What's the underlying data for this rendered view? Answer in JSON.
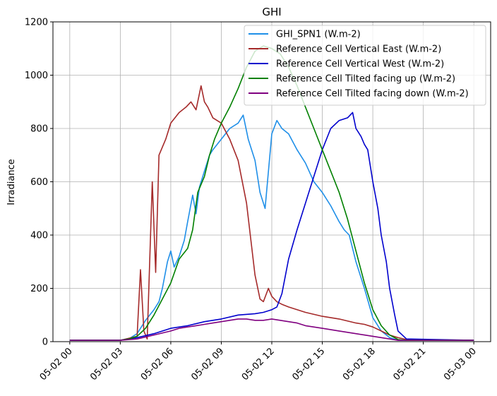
{
  "chart_data": {
    "type": "line",
    "title": "GHI",
    "xlabel": "",
    "ylabel": "Irradiance",
    "xlim": [
      -1.0,
      25.0
    ],
    "ylim": [
      0,
      1200
    ],
    "x_unit": "hours after 05-02 00:00",
    "xticks": [
      {
        "v": 0,
        "label": "05-02 00"
      },
      {
        "v": 3,
        "label": "05-02 03"
      },
      {
        "v": 6,
        "label": "05-02 06"
      },
      {
        "v": 9,
        "label": "05-02 09"
      },
      {
        "v": 12,
        "label": "05-02 12"
      },
      {
        "v": 15,
        "label": "05-02 15"
      },
      {
        "v": 18,
        "label": "05-02 18"
      },
      {
        "v": 21,
        "label": "05-02 21"
      },
      {
        "v": 24,
        "label": "05-03 00"
      }
    ],
    "yticks": [
      0,
      200,
      400,
      600,
      800,
      1000,
      1200
    ],
    "grid": true,
    "legend_position": "top-right",
    "series": [
      {
        "name": "GHI_SPN1 (W.m-2)",
        "color": "#1f8fe8",
        "x": [
          0,
          3.0,
          3.5,
          4.0,
          4.5,
          5.0,
          5.3,
          5.5,
          5.8,
          6.0,
          6.2,
          6.5,
          6.8,
          7.0,
          7.3,
          7.5,
          7.7,
          8.0,
          8.3,
          8.5,
          9.0,
          9.5,
          10.0,
          10.3,
          10.6,
          11.0,
          11.3,
          11.6,
          12.0,
          12.3,
          12.6,
          13.0,
          13.5,
          14.0,
          14.5,
          15.0,
          15.5,
          16.0,
          16.3,
          16.6,
          17.0,
          17.5,
          18.0,
          18.5,
          19.0,
          19.5,
          20.0,
          24.0
        ],
        "y": [
          5,
          5,
          10,
          30,
          80,
          120,
          150,
          200,
          300,
          340,
          280,
          320,
          380,
          450,
          550,
          480,
          580,
          640,
          700,
          720,
          760,
          800,
          820,
          850,
          760,
          680,
          560,
          500,
          780,
          830,
          800,
          780,
          720,
          670,
          600,
          560,
          510,
          450,
          420,
          400,
          300,
          200,
          90,
          40,
          15,
          5,
          5,
          5
        ]
      },
      {
        "name": "Reference Cell Vertical East (W.m-2)",
        "color": "#a52a2a",
        "x": [
          0,
          3.0,
          4.0,
          4.2,
          4.4,
          4.6,
          4.9,
          5.1,
          5.3,
          5.5,
          5.7,
          6.0,
          6.5,
          6.9,
          7.2,
          7.5,
          7.8,
          8.0,
          8.2,
          8.5,
          9.0,
          9.5,
          10.0,
          10.5,
          11.0,
          11.3,
          11.5,
          11.8,
          12.0,
          12.3,
          12.6,
          13.0,
          14.0,
          15.0,
          16.0,
          17.0,
          17.5,
          18.0,
          18.5,
          19.0,
          19.5,
          20.0,
          24.0
        ],
        "y": [
          5,
          5,
          20,
          270,
          40,
          10,
          600,
          260,
          700,
          730,
          760,
          820,
          860,
          880,
          900,
          870,
          960,
          900,
          880,
          840,
          820,
          760,
          680,
          520,
          250,
          160,
          150,
          200,
          170,
          150,
          140,
          130,
          110,
          95,
          85,
          70,
          65,
          55,
          40,
          25,
          15,
          8,
          5
        ]
      },
      {
        "name": "Reference Cell Vertical West (W.m-2)",
        "color": "#0000cd",
        "x": [
          0,
          3.0,
          4.0,
          5.0,
          6.0,
          7.0,
          8.0,
          9.0,
          10.0,
          11.0,
          11.5,
          12.0,
          12.3,
          12.6,
          13.0,
          13.5,
          14.0,
          14.5,
          15.0,
          15.5,
          16.0,
          16.5,
          16.8,
          17.0,
          17.3,
          17.5,
          17.7,
          18.0,
          18.3,
          18.5,
          18.8,
          19.0,
          19.3,
          19.5,
          20.0,
          24.0
        ],
        "y": [
          5,
          5,
          15,
          30,
          50,
          60,
          75,
          85,
          100,
          105,
          110,
          120,
          130,
          180,
          310,
          420,
          520,
          620,
          720,
          800,
          830,
          840,
          860,
          800,
          770,
          740,
          720,
          600,
          500,
          400,
          300,
          200,
          100,
          40,
          10,
          5
        ]
      },
      {
        "name": "Reference Cell Tilted facing up (W.m-2)",
        "color": "#008000",
        "x": [
          0,
          3.0,
          3.5,
          4.0,
          4.5,
          5.0,
          5.5,
          6.0,
          6.5,
          7.0,
          7.3,
          7.6,
          8.0,
          8.3,
          8.6,
          9.0,
          9.5,
          10.0,
          10.5,
          11.0,
          11.5,
          12.0,
          12.5,
          13.0,
          13.5,
          14.0,
          14.5,
          15.0,
          15.5,
          16.0,
          16.5,
          17.0,
          17.5,
          18.0,
          18.5,
          19.0,
          19.5,
          20.0,
          24.0
        ],
        "y": [
          5,
          5,
          10,
          20,
          50,
          100,
          160,
          220,
          310,
          350,
          420,
          560,
          620,
          700,
          760,
          820,
          880,
          950,
          1030,
          1090,
          1110,
          1100,
          1080,
          1030,
          960,
          880,
          800,
          720,
          640,
          560,
          460,
          340,
          220,
          120,
          60,
          25,
          8,
          5,
          5
        ]
      },
      {
        "name": "Reference Cell Tilted facing down (W.m-2)",
        "color": "#800080",
        "x": [
          0,
          3.0,
          4.0,
          5.0,
          6.0,
          6.5,
          7.0,
          7.5,
          8.0,
          8.5,
          9.0,
          9.5,
          10.0,
          10.5,
          11.0,
          11.5,
          12.0,
          12.5,
          13.0,
          13.5,
          14.0,
          15.0,
          16.0,
          17.0,
          17.5,
          18.0,
          18.5,
          19.0,
          19.5,
          20.0,
          24.0
        ],
        "y": [
          5,
          5,
          10,
          25,
          40,
          50,
          55,
          60,
          65,
          70,
          75,
          80,
          85,
          85,
          80,
          80,
          85,
          80,
          75,
          70,
          60,
          50,
          40,
          30,
          25,
          20,
          15,
          10,
          5,
          5,
          5
        ]
      }
    ]
  }
}
